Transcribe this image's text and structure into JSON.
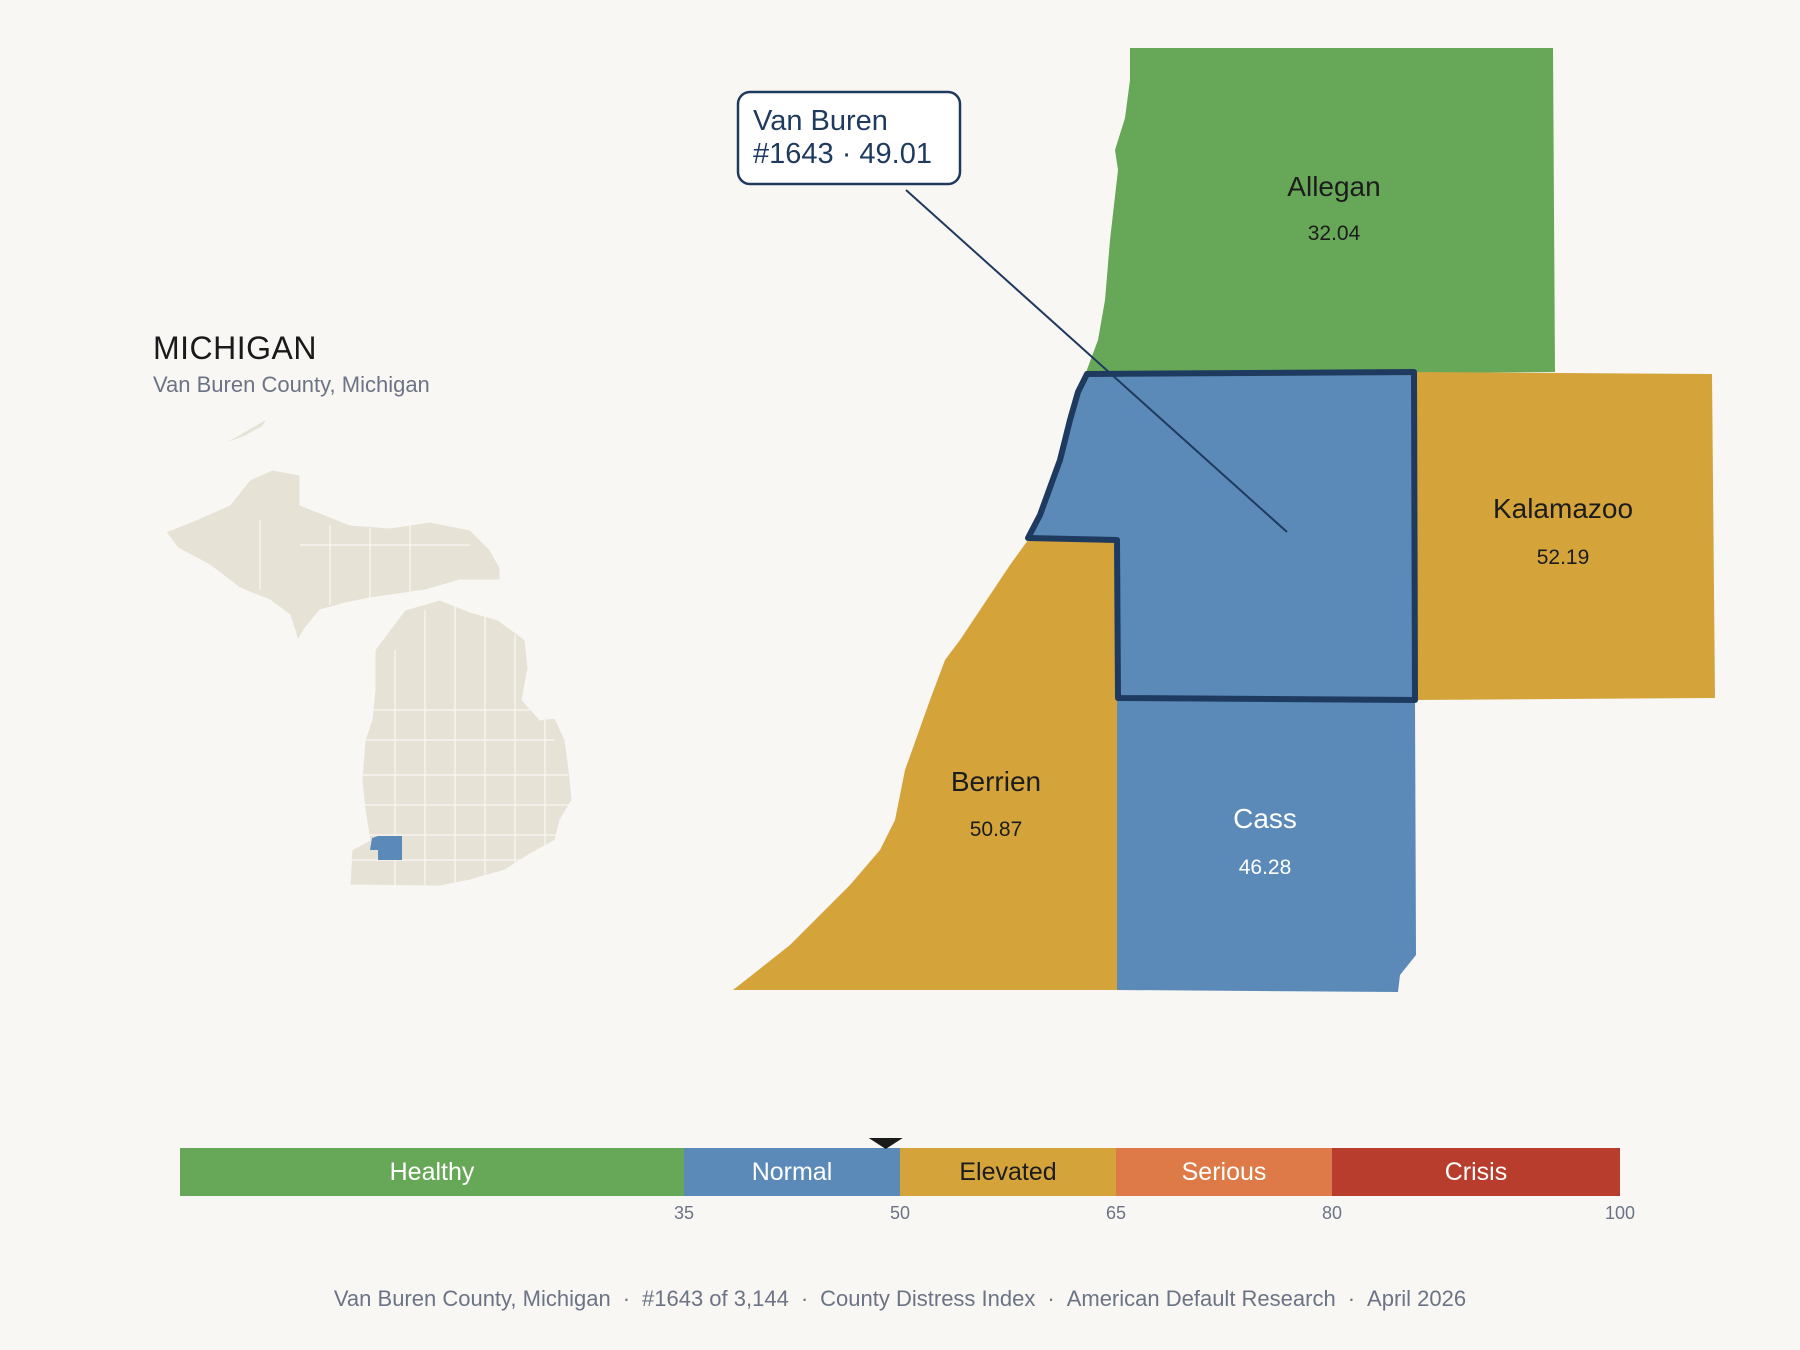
{
  "state": {
    "title": "MICHIGAN",
    "subtitle": "Van Buren County, Michigan"
  },
  "callout": {
    "line1": "Van Buren",
    "line2": "#1643 · 49.01"
  },
  "counties": {
    "allegan": {
      "name": "Allegan",
      "value": "32.04",
      "category": "Healthy"
    },
    "kalamazoo": {
      "name": "Kalamazoo",
      "value": "52.19",
      "category": "Elevated"
    },
    "berrien": {
      "name": "Berrien",
      "value": "50.87",
      "category": "Elevated"
    },
    "cass": {
      "name": "Cass",
      "value": "46.28",
      "category": "Normal"
    },
    "van_buren": {
      "name": "Van Buren",
      "value": "49.01",
      "category": "Normal",
      "highlighted": true
    }
  },
  "legend": {
    "bands": [
      {
        "label": "Healthy",
        "color": "#67a858",
        "min": 0,
        "max": 35
      },
      {
        "label": "Normal",
        "color": "#5b8ab9",
        "min": 35,
        "max": 50
      },
      {
        "label": "Elevated",
        "color": "#d4a43b",
        "min": 50,
        "max": 65
      },
      {
        "label": "Serious",
        "color": "#dd7a48",
        "min": 65,
        "max": 80
      },
      {
        "label": "Crisis",
        "color": "#b93d2d",
        "min": 80,
        "max": 100
      }
    ],
    "ticks": [
      "35",
      "50",
      "65",
      "80",
      "100"
    ],
    "marker_value": 49.01
  },
  "footer": {
    "items": [
      "Van Buren County, Michigan",
      "#1643 of 3,144",
      "County Distress Index",
      "American Default Research",
      "April 2026"
    ]
  },
  "colors": {
    "background": "#f9f7f4",
    "inset_land": "#e7e2d6",
    "highlight_outline": "#1f3a5f"
  }
}
